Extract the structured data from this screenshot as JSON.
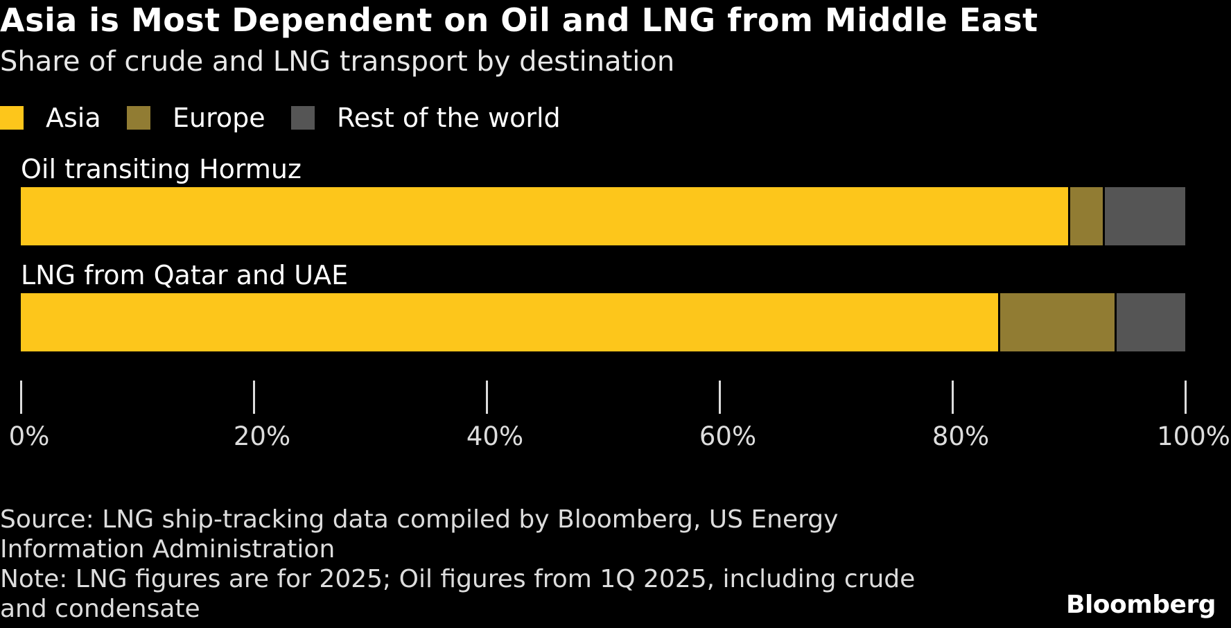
{
  "chart_data": {
    "type": "bar",
    "orientation": "horizontal",
    "stacked": true,
    "title": "Asia is Most Dependent on Oil and LNG from Middle East",
    "subtitle": "Share of crude and LNG transport by destination",
    "categories": [
      "Oil transiting Hormuz",
      "LNG from Qatar and UAE"
    ],
    "series": [
      {
        "name": "Asia",
        "color": "#fdc61b",
        "values": [
          90,
          84
        ]
      },
      {
        "name": "Europe",
        "color": "#917c33",
        "values": [
          3,
          10
        ]
      },
      {
        "name": "Rest of the world",
        "color": "#555555",
        "values": [
          7,
          6
        ]
      }
    ],
    "xlim": [
      0,
      100
    ],
    "xticks": [
      "0%",
      "20%",
      "40%",
      "60%",
      "80%",
      "100%"
    ],
    "legend": "top-left",
    "grid": false
  },
  "footer": {
    "source": [
      "Source: LNG ship-tracking data compiled by Bloomberg, US Energy",
      "Information Administration"
    ],
    "note": [
      "Note: LNG figures are for 2025; Oil figures from 1Q 2025, including crude",
      "and condensate"
    ],
    "logo": "Bloomberg"
  }
}
